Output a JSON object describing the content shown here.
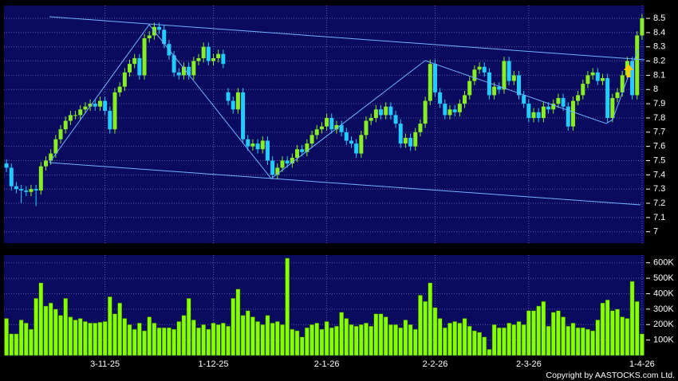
{
  "chart_data": [
    {
      "type": "candlestick",
      "up_color": "#88ee22",
      "down_color": "#22ccff",
      "ylim": [
        6.92,
        8.59
      ],
      "yticks": [
        7,
        7.1,
        7.2,
        7.3,
        7.4,
        7.5,
        7.6,
        7.7,
        7.8,
        7.9,
        8,
        8.1,
        8.2,
        8.3,
        8.4,
        8.5
      ],
      "grid": true,
      "ohlc": [
        [
          7.48,
          7.51,
          7.42,
          7.45
        ],
        [
          7.45,
          7.48,
          7.29,
          7.32
        ],
        [
          7.32,
          7.35,
          7.27,
          7.3
        ],
        [
          7.3,
          7.33,
          7.2,
          7.29
        ],
        [
          7.29,
          7.32,
          7.25,
          7.28
        ],
        [
          7.28,
          7.33,
          7.25,
          7.3
        ],
        [
          7.3,
          7.33,
          7.18,
          7.29
        ],
        [
          7.29,
          7.49,
          7.26,
          7.46
        ],
        [
          7.46,
          7.53,
          7.43,
          7.5
        ],
        [
          7.5,
          7.58,
          7.47,
          7.55
        ],
        [
          7.55,
          7.68,
          7.52,
          7.65
        ],
        [
          7.65,
          7.75,
          7.62,
          7.72
        ],
        [
          7.72,
          7.81,
          7.69,
          7.78
        ],
        [
          7.78,
          7.85,
          7.75,
          7.82
        ],
        [
          7.82,
          7.85,
          7.79,
          7.82
        ],
        [
          7.82,
          7.89,
          7.79,
          7.86
        ],
        [
          7.86,
          7.91,
          7.83,
          7.88
        ],
        [
          7.88,
          7.93,
          7.85,
          7.9
        ],
        [
          7.9,
          7.93,
          7.85,
          7.88
        ],
        [
          7.88,
          7.95,
          7.85,
          7.92
        ],
        [
          7.92,
          7.95,
          7.82,
          7.85
        ],
        [
          7.85,
          7.88,
          7.69,
          7.72
        ],
        [
          7.72,
          8.01,
          7.69,
          7.98
        ],
        [
          7.98,
          8.05,
          7.95,
          8.02
        ],
        [
          8.02,
          8.15,
          7.99,
          8.12
        ],
        [
          8.12,
          8.21,
          8.09,
          8.18
        ],
        [
          8.18,
          8.25,
          8.15,
          8.22
        ],
        [
          8.22,
          8.25,
          8.07,
          8.1
        ],
        [
          8.1,
          8.39,
          8.07,
          8.36
        ],
        [
          8.36,
          8.41,
          8.33,
          8.38
        ],
        [
          8.38,
          8.47,
          8.35,
          8.44
        ],
        [
          8.44,
          8.47,
          8.39,
          8.42
        ],
        [
          8.42,
          8.45,
          8.29,
          8.32
        ],
        [
          8.32,
          8.35,
          8.21,
          8.24
        ],
        [
          8.24,
          8.27,
          8.09,
          8.12
        ],
        [
          8.12,
          8.15,
          8.07,
          8.1
        ],
        [
          8.1,
          8.19,
          8.07,
          8.16
        ],
        [
          8.16,
          8.19,
          8.07,
          8.1
        ],
        [
          8.1,
          8.23,
          8.07,
          8.2
        ],
        [
          8.2,
          8.25,
          8.17,
          8.22
        ],
        [
          8.22,
          8.33,
          8.19,
          8.3
        ],
        [
          8.3,
          8.33,
          8.17,
          8.2
        ],
        [
          8.2,
          8.25,
          8.17,
          8.22
        ],
        [
          8.22,
          8.28,
          8.19,
          8.25
        ],
        [
          8.25,
          8.28,
          8.15,
          8.18
        ],
        [
          7.98,
          8.01,
          7.89,
          7.92
        ],
        [
          7.92,
          7.95,
          7.83,
          7.86
        ],
        [
          7.86,
          8.01,
          7.83,
          7.98
        ],
        [
          7.98,
          8.01,
          7.62,
          7.65
        ],
        [
          7.65,
          7.68,
          7.57,
          7.6
        ],
        [
          7.6,
          7.65,
          7.57,
          7.62
        ],
        [
          7.62,
          7.65,
          7.55,
          7.58
        ],
        [
          7.58,
          7.67,
          7.55,
          7.64
        ],
        [
          7.64,
          7.67,
          7.47,
          7.5
        ],
        [
          7.5,
          7.53,
          7.37,
          7.4
        ],
        [
          7.4,
          7.48,
          7.37,
          7.45
        ],
        [
          7.45,
          7.53,
          7.42,
          7.5
        ],
        [
          7.5,
          7.53,
          7.45,
          7.48
        ],
        [
          7.48,
          7.55,
          7.45,
          7.52
        ],
        [
          7.52,
          7.61,
          7.49,
          7.58
        ],
        [
          7.58,
          7.61,
          7.53,
          7.56
        ],
        [
          7.56,
          7.65,
          7.53,
          7.62
        ],
        [
          7.62,
          7.71,
          7.59,
          7.68
        ],
        [
          7.68,
          7.75,
          7.65,
          7.72
        ],
        [
          7.72,
          7.77,
          7.69,
          7.74
        ],
        [
          7.74,
          7.83,
          7.71,
          7.8
        ],
        [
          7.8,
          7.83,
          7.69,
          7.72
        ],
        [
          7.72,
          7.78,
          7.69,
          7.75
        ],
        [
          7.75,
          7.78,
          7.67,
          7.7
        ],
        [
          7.7,
          7.73,
          7.61,
          7.64
        ],
        [
          7.64,
          7.67,
          7.59,
          7.62
        ],
        [
          7.62,
          7.65,
          7.52,
          7.55
        ],
        [
          7.55,
          7.71,
          7.52,
          7.68
        ],
        [
          7.68,
          7.81,
          7.65,
          7.78
        ],
        [
          7.78,
          7.83,
          7.75,
          7.8
        ],
        [
          7.8,
          7.89,
          7.77,
          7.86
        ],
        [
          7.86,
          7.89,
          7.79,
          7.82
        ],
        [
          7.82,
          7.91,
          7.79,
          7.88
        ],
        [
          7.88,
          7.91,
          7.79,
          7.82
        ],
        [
          7.82,
          7.85,
          7.73,
          7.76
        ],
        [
          7.76,
          7.79,
          7.59,
          7.62
        ],
        [
          7.62,
          7.69,
          7.59,
          7.66
        ],
        [
          7.66,
          7.69,
          7.57,
          7.6
        ],
        [
          7.6,
          7.73,
          7.57,
          7.7
        ],
        [
          7.7,
          7.79,
          7.67,
          7.76
        ],
        [
          7.76,
          7.95,
          7.73,
          7.92
        ],
        [
          7.92,
          8.21,
          7.89,
          8.18
        ],
        [
          8.18,
          8.21,
          7.95,
          7.98
        ],
        [
          7.98,
          8.01,
          7.87,
          7.9
        ],
        [
          7.9,
          7.93,
          7.79,
          7.82
        ],
        [
          7.82,
          7.89,
          7.79,
          7.86
        ],
        [
          7.86,
          7.89,
          7.81,
          7.84
        ],
        [
          7.84,
          7.93,
          7.81,
          7.9
        ],
        [
          7.9,
          7.99,
          7.87,
          7.96
        ],
        [
          7.96,
          8.09,
          7.93,
          8.06
        ],
        [
          8.06,
          8.17,
          8.03,
          8.14
        ],
        [
          8.14,
          8.19,
          8.11,
          8.16
        ],
        [
          8.16,
          8.19,
          8.09,
          8.12
        ],
        [
          8.12,
          8.15,
          7.93,
          7.96
        ],
        [
          7.96,
          8.05,
          7.93,
          8.02
        ],
        [
          8.02,
          8.05,
          7.97,
          8
        ],
        [
          8,
          8.23,
          7.97,
          8.2
        ],
        [
          8.2,
          8.23,
          8.03,
          8.06
        ],
        [
          8.06,
          8.13,
          8.03,
          8.1
        ],
        [
          8.1,
          8.13,
          7.93,
          7.96
        ],
        [
          7.96,
          7.99,
          7.87,
          7.9
        ],
        [
          7.9,
          7.93,
          7.77,
          7.8
        ],
        [
          7.8,
          7.87,
          7.77,
          7.84
        ],
        [
          7.84,
          7.87,
          7.77,
          7.8
        ],
        [
          7.8,
          7.91,
          7.77,
          7.88
        ],
        [
          7.88,
          7.91,
          7.83,
          7.86
        ],
        [
          7.86,
          7.93,
          7.83,
          7.9
        ],
        [
          7.9,
          7.97,
          7.87,
          7.94
        ],
        [
          7.94,
          7.97,
          7.85,
          7.88
        ],
        [
          7.88,
          7.91,
          7.71,
          7.74
        ],
        [
          7.74,
          7.95,
          7.71,
          7.92
        ],
        [
          7.92,
          7.99,
          7.89,
          7.96
        ],
        [
          7.96,
          8.07,
          7.93,
          8.04
        ],
        [
          8.04,
          8.13,
          8.01,
          8.1
        ],
        [
          8.1,
          8.15,
          8.07,
          8.12
        ],
        [
          8.12,
          8.15,
          8.03,
          8.06
        ],
        [
          8.06,
          8.11,
          8.03,
          8.08
        ],
        [
          8.08,
          8.11,
          7.77,
          7.8
        ],
        [
          7.8,
          7.97,
          7.77,
          7.94
        ],
        [
          7.94,
          8.01,
          7.91,
          7.98
        ],
        [
          7.98,
          8.13,
          7.95,
          8.1
        ],
        [
          8.1,
          8.23,
          8.07,
          8.2
        ],
        [
          8.2,
          8.23,
          7.93,
          7.96
        ],
        [
          7.96,
          8.41,
          7.93,
          8.38
        ],
        [
          8.38,
          8.53,
          8.35,
          8.5
        ]
      ]
    },
    {
      "type": "bar",
      "color": "#88ff00",
      "ylim": [
        0,
        650000
      ],
      "yticks": [
        {
          "value": 100000,
          "label": "100K"
        },
        {
          "value": 200000,
          "label": "200K"
        },
        {
          "value": 300000,
          "label": "300K"
        },
        {
          "value": 400000,
          "label": "400K"
        },
        {
          "value": 500000,
          "label": "500K"
        },
        {
          "value": 600000,
          "label": "600K"
        }
      ],
      "grid": true,
      "categories": [
        null,
        null,
        null,
        null,
        null,
        null,
        null,
        null,
        null,
        null,
        null,
        null,
        null,
        null,
        null,
        null,
        null,
        null,
        null,
        null,
        "3-11-25",
        null,
        null,
        null,
        null,
        null,
        null,
        null,
        null,
        null,
        null,
        null,
        null,
        null,
        null,
        null,
        null,
        null,
        null,
        null,
        null,
        null,
        "1-12-25",
        null,
        null,
        null,
        null,
        null,
        null,
        null,
        null,
        null,
        null,
        null,
        null,
        null,
        null,
        null,
        null,
        null,
        null,
        null,
        null,
        null,
        null,
        "2-1-26",
        null,
        null,
        null,
        null,
        null,
        null,
        null,
        null,
        null,
        null,
        null,
        null,
        null,
        null,
        null,
        null,
        null,
        null,
        null,
        null,
        null,
        "2-2-26",
        null,
        null,
        null,
        null,
        null,
        null,
        null,
        null,
        null,
        null,
        null,
        null,
        null,
        null,
        null,
        null,
        null,
        null,
        "2-3-26",
        null,
        null,
        null,
        null,
        null,
        null,
        null,
        null,
        null,
        null,
        null,
        null,
        null,
        null,
        null,
        null,
        null,
        null,
        null,
        null,
        null,
        null,
        "1-4-26"
      ],
      "values": [
        240000,
        140000,
        140000,
        230000,
        210000,
        170000,
        370000,
        470000,
        320000,
        340000,
        300000,
        260000,
        370000,
        250000,
        230000,
        240000,
        220000,
        210000,
        210000,
        215000,
        220000,
        380000,
        270000,
        340000,
        240000,
        200000,
        170000,
        210000,
        160000,
        250000,
        210000,
        180000,
        180000,
        180000,
        170000,
        220000,
        260000,
        370000,
        230000,
        180000,
        200000,
        170000,
        210000,
        200000,
        210000,
        190000,
        370000,
        430000,
        260000,
        290000,
        250000,
        220000,
        200000,
        260000,
        210000,
        220000,
        200000,
        630000,
        170000,
        160000,
        120000,
        180000,
        200000,
        210000,
        170000,
        220000,
        180000,
        190000,
        280000,
        240000,
        200000,
        190000,
        200000,
        210000,
        190000,
        270000,
        270000,
        250000,
        200000,
        200000,
        180000,
        230000,
        200000,
        170000,
        390000,
        350000,
        470000,
        310000,
        240000,
        180000,
        210000,
        220000,
        210000,
        240000,
        190000,
        160000,
        150000,
        120000,
        40000,
        200000,
        180000,
        180000,
        210000,
        200000,
        220000,
        200000,
        290000,
        290000,
        320000,
        350000,
        190000,
        280000,
        290000,
        250000,
        190000,
        210000,
        180000,
        180000,
        170000,
        160000,
        230000,
        340000,
        360000,
        290000,
        300000,
        250000,
        240000,
        480000,
        350000,
        140000
      ]
    }
  ],
  "footer": "Copyright by AASTOCKS.com Ltd."
}
